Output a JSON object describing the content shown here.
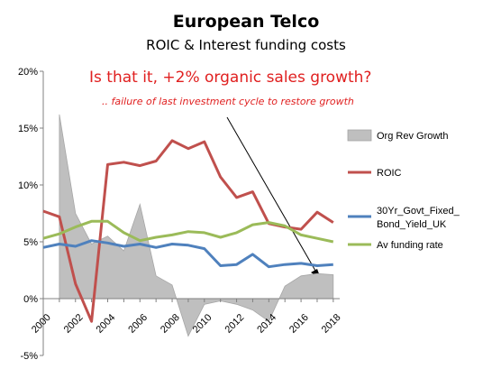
{
  "chart_data": {
    "type": "line",
    "title": "European Telco",
    "subtitle": "ROIC & Interest funding costs",
    "annotations": [
      "Is that it, +2% organic sales growth?",
      ".. failure of last investment cycle to restore growth"
    ],
    "x": [
      2000,
      2001,
      2002,
      2003,
      2004,
      2005,
      2006,
      2007,
      2008,
      2009,
      2010,
      2011,
      2012,
      2013,
      2014,
      2015,
      2016,
      2017,
      2018
    ],
    "x_tick_labels": [
      "2000",
      "2002",
      "2004",
      "2006",
      "2008",
      "2010",
      "2012",
      "2014",
      "2016",
      "2018"
    ],
    "y_tick_labels": [
      "-5%",
      "0%",
      "5%",
      "10%",
      "15%",
      "20%"
    ],
    "ylim": [
      -5,
      20
    ],
    "grid": false,
    "legend_position": "right",
    "series": [
      {
        "name": "Org Rev Growth",
        "kind": "area",
        "color": "#bfbfbf",
        "x": [
          2001,
          2002,
          2003,
          2004,
          2005,
          2006,
          2007,
          2008,
          2009,
          2010,
          2011,
          2012,
          2013,
          2014,
          2015,
          2016,
          2017,
          2018
        ],
        "values": [
          16.2,
          7.5,
          4.8,
          5.5,
          4.2,
          8.3,
          2.0,
          1.2,
          -3.3,
          -0.5,
          -0.2,
          -0.5,
          -1.0,
          -2.0,
          1.1,
          2.0,
          2.2,
          2.1
        ]
      },
      {
        "name": "ROIC",
        "kind": "line",
        "color": "#c0504d",
        "x": [
          2000,
          2001,
          2002,
          2003,
          2004,
          2005,
          2006,
          2007,
          2008,
          2009,
          2010,
          2011,
          2012,
          2013,
          2014,
          2015,
          2016,
          2017,
          2018
        ],
        "values": [
          7.7,
          7.2,
          1.3,
          -2.0,
          11.8,
          12.0,
          11.7,
          12.1,
          13.9,
          13.2,
          13.8,
          10.7,
          8.9,
          9.4,
          6.6,
          6.3,
          6.1,
          7.6,
          6.7
        ]
      },
      {
        "name": "30Yr_Govt_Fixed_Bond_Yield_UK",
        "legend_lines": [
          "30Yr_Govt_Fixed_",
          "Bond_Yield_UK"
        ],
        "kind": "line",
        "color": "#4f81bd",
        "x": [
          2000,
          2001,
          2002,
          2003,
          2004,
          2005,
          2006,
          2007,
          2008,
          2009,
          2010,
          2011,
          2012,
          2013,
          2014,
          2015,
          2016,
          2017,
          2018
        ],
        "values": [
          4.5,
          4.8,
          4.6,
          5.1,
          4.9,
          4.6,
          4.8,
          4.5,
          4.8,
          4.7,
          4.4,
          2.9,
          3.0,
          3.9,
          2.8,
          3.0,
          3.1,
          2.9,
          3.0
        ]
      },
      {
        "name": "Av funding rate",
        "kind": "line",
        "color": "#9bbb59",
        "x": [
          2000,
          2001,
          2002,
          2003,
          2004,
          2005,
          2006,
          2007,
          2008,
          2009,
          2010,
          2011,
          2012,
          2013,
          2014,
          2015,
          2016,
          2017,
          2018
        ],
        "values": [
          5.3,
          5.7,
          6.3,
          6.8,
          6.8,
          5.8,
          5.1,
          5.4,
          5.6,
          5.9,
          5.8,
          5.4,
          5.8,
          6.5,
          6.7,
          6.4,
          5.6,
          5.3,
          5.0
        ]
      }
    ]
  }
}
